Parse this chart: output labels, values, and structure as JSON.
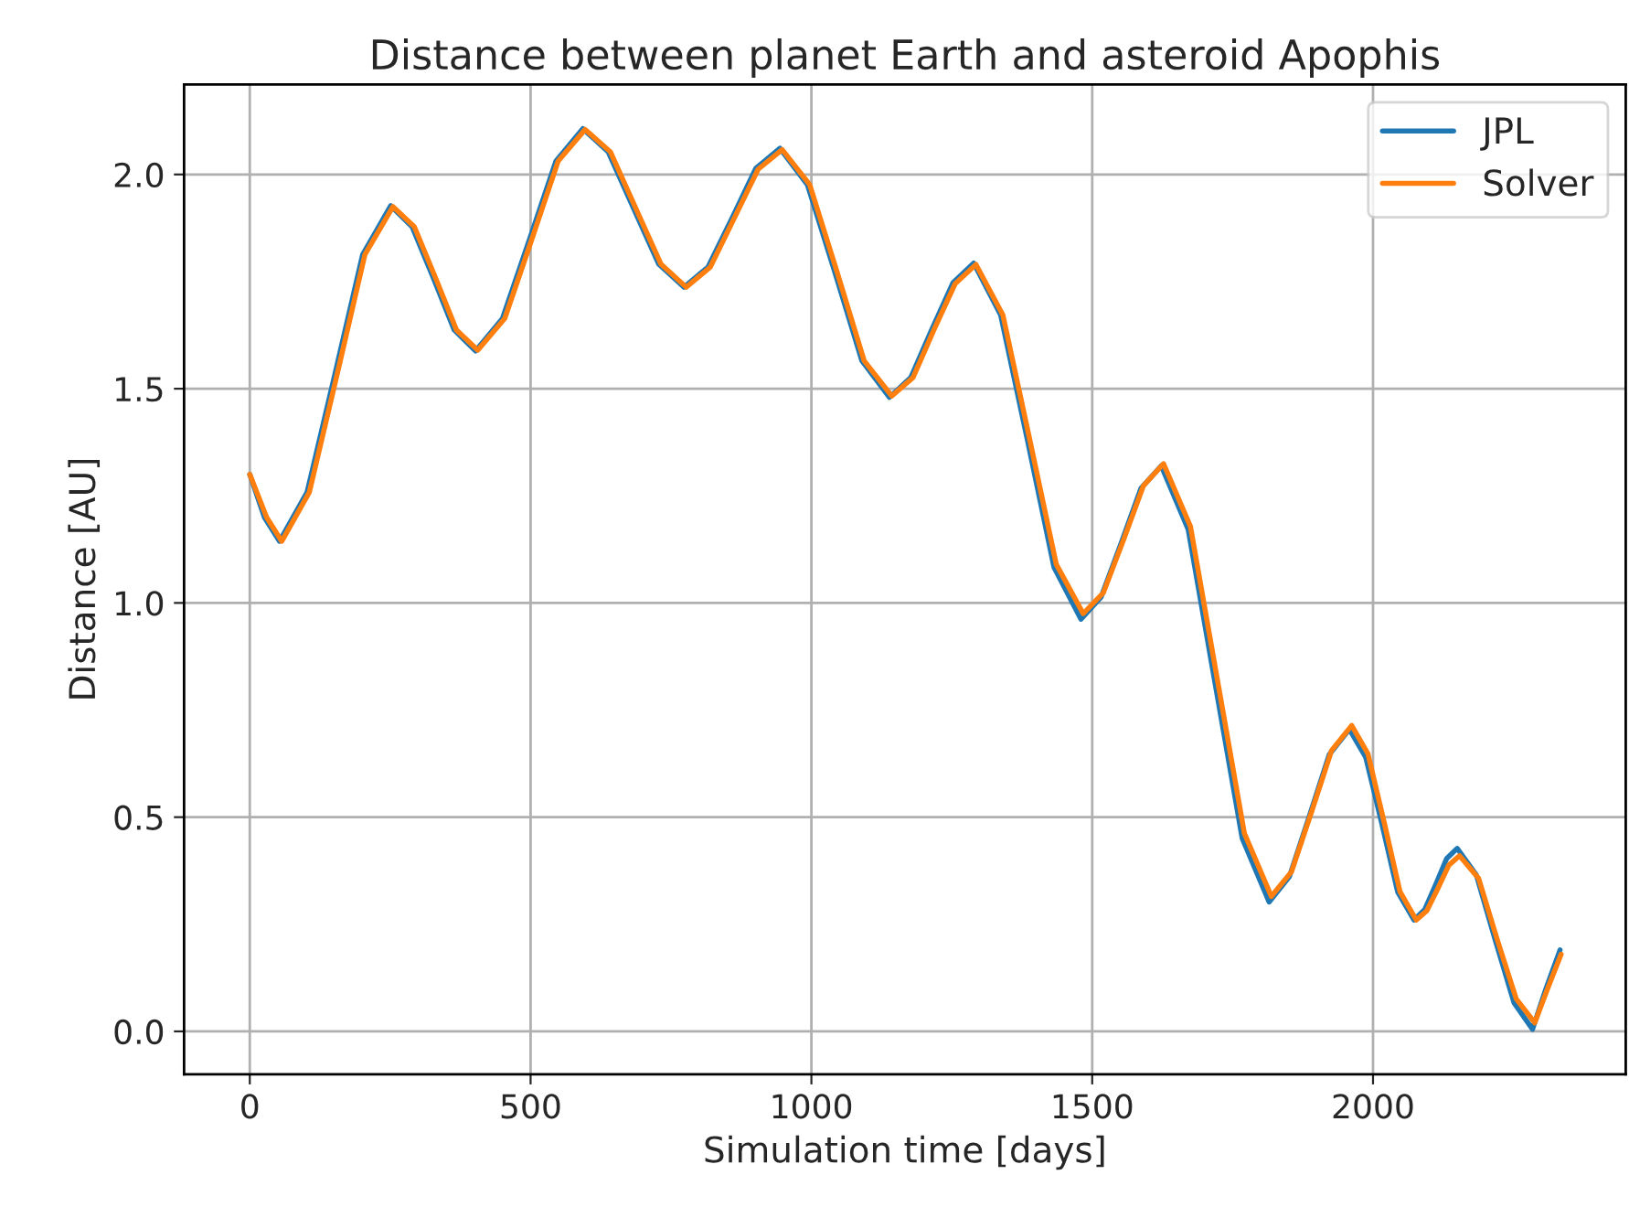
{
  "chart_data": {
    "type": "line",
    "title": "Distance between planet Earth and asteroid Apophis",
    "xlabel": "Simulation time [days]",
    "ylabel": "Distance [AU]",
    "series": [
      {
        "name": "JPL",
        "color": "#1f77b4",
        "x": [
          0,
          26,
          53,
          102,
          152,
          201,
          251,
          289,
          327,
          364,
          402,
          450,
          498,
          545,
          593,
          638,
          683,
          728,
          773,
          816,
          859,
          901,
          944,
          993,
          1042,
          1090,
          1139,
          1177,
          1214,
          1252,
          1289,
          1337,
          1385,
          1432,
          1480,
          1516,
          1552,
          1587,
          1623,
          1671,
          1719,
          1767,
          1815,
          1851,
          1887,
          1922,
          1958,
          1987,
          2016,
          2044,
          2073,
          2092,
          2112,
          2131,
          2150,
          2184,
          2217,
          2251,
          2284,
          2308,
          2333
        ],
        "values": [
          1.3,
          1.2,
          1.144,
          1.258,
          1.536,
          1.813,
          1.927,
          1.878,
          1.758,
          1.637,
          1.588,
          1.664,
          1.848,
          2.031,
          2.107,
          2.053,
          1.922,
          1.791,
          1.737,
          1.784,
          1.899,
          2.014,
          2.061,
          1.976,
          1.771,
          1.565,
          1.48,
          1.526,
          1.637,
          1.747,
          1.793,
          1.672,
          1.378,
          1.083,
          0.962,
          1.014,
          1.141,
          1.268,
          1.32,
          1.171,
          0.811,
          0.451,
          0.302,
          0.361,
          0.504,
          0.646,
          0.705,
          0.64,
          0.483,
          0.325,
          0.26,
          0.284,
          0.344,
          0.403,
          0.427,
          0.365,
          0.216,
          0.067,
          0.005,
          0.1,
          0.19
        ]
      },
      {
        "name": "Solver",
        "color": "#ff7f0e",
        "x": [
          0,
          30,
          57,
          106,
          156,
          205,
          255,
          293,
          331,
          368,
          406,
          454,
          502,
          549,
          597,
          642,
          687,
          732,
          777,
          820,
          863,
          905,
          948,
          997,
          1046,
          1094,
          1143,
          1181,
          1218,
          1256,
          1293,
          1341,
          1389,
          1436,
          1484,
          1520,
          1556,
          1591,
          1627,
          1675,
          1723,
          1771,
          1819,
          1855,
          1891,
          1926,
          1962,
          1991,
          2020,
          2048,
          2077,
          2096,
          2116,
          2135,
          2154,
          2188,
          2221,
          2255,
          2288,
          2311,
          2335
        ],
        "values": [
          1.3,
          1.2,
          1.144,
          1.258,
          1.536,
          1.813,
          1.925,
          1.878,
          1.758,
          1.637,
          1.59,
          1.664,
          1.848,
          2.031,
          2.105,
          2.053,
          1.922,
          1.791,
          1.737,
          1.784,
          1.899,
          2.012,
          2.058,
          1.976,
          1.771,
          1.565,
          1.483,
          1.526,
          1.637,
          1.745,
          1.79,
          1.672,
          1.38,
          1.09,
          0.975,
          1.024,
          1.148,
          1.273,
          1.325,
          1.178,
          0.82,
          0.462,
          0.315,
          0.373,
          0.514,
          0.655,
          0.714,
          0.648,
          0.487,
          0.326,
          0.26,
          0.282,
          0.335,
          0.388,
          0.41,
          0.357,
          0.215,
          0.076,
          0.02,
          0.1,
          0.18
        ]
      }
    ],
    "xlim": [
      -117,
      2450
    ],
    "ylim": [
      -0.1,
      2.21
    ],
    "xticks": [
      0,
      500,
      1000,
      1500,
      2000
    ],
    "yticks": [
      {
        "value": 0,
        "label": "0.0"
      },
      {
        "value": 0.5,
        "label": "0.5"
      },
      {
        "value": 1,
        "label": "1.0"
      },
      {
        "value": 1.5,
        "label": "1.5"
      },
      {
        "value": 2,
        "label": "2.0"
      }
    ],
    "grid": true,
    "legend": "top right",
    "line_style": "solid",
    "marker": "none"
  }
}
